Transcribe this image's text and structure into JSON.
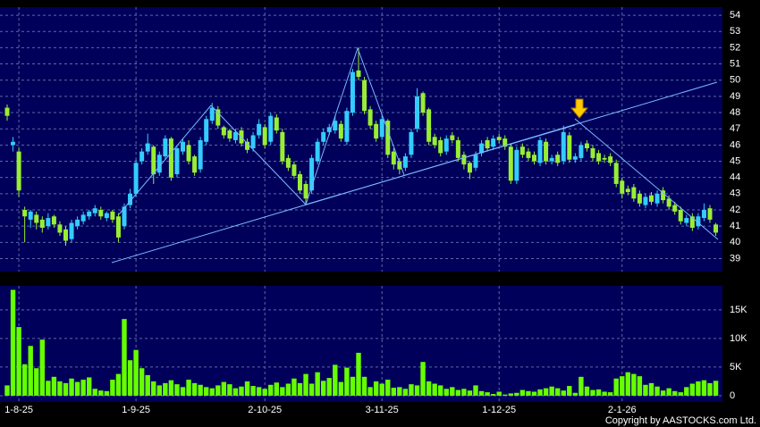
{
  "chart_data": {
    "type": "candlestick",
    "categories": [
      null,
      null,
      "1-8-25",
      null,
      null,
      null,
      null,
      null,
      null,
      null,
      null,
      null,
      null,
      null,
      null,
      null,
      null,
      null,
      null,
      null,
      null,
      null,
      "1-9-25",
      null,
      null,
      null,
      null,
      null,
      null,
      null,
      null,
      null,
      null,
      null,
      null,
      null,
      null,
      null,
      null,
      null,
      null,
      null,
      null,
      null,
      "2-10-25",
      null,
      null,
      null,
      null,
      null,
      null,
      null,
      null,
      null,
      null,
      null,
      null,
      null,
      null,
      null,
      null,
      null,
      null,
      null,
      "3-11-25",
      null,
      null,
      null,
      null,
      null,
      null,
      null,
      null,
      null,
      null,
      null,
      null,
      null,
      null,
      null,
      null,
      null,
      null,
      null,
      "1-12-25",
      null,
      null,
      null,
      null,
      null,
      null,
      null,
      null,
      null,
      null,
      null,
      null,
      null,
      null,
      null,
      null,
      null,
      null,
      null,
      null,
      "2-1-26",
      null,
      null,
      null,
      null,
      null,
      null,
      null,
      null,
      null,
      null,
      null,
      null,
      null,
      null,
      null,
      null
    ],
    "open": [
      48.3,
      46.0,
      45.6,
      42.0,
      41.4,
      41.7,
      41.4,
      41.0,
      41.6,
      41.1,
      40.8,
      40.2,
      41.0,
      41.3,
      41.6,
      41.8,
      42.0,
      41.5,
      41.9,
      41.6,
      41.0,
      42.3,
      43.0,
      45.0,
      45.6,
      45.9,
      44.3,
      45.3,
      46.4,
      44.2,
      45.6,
      46.0,
      45.3,
      44.5,
      46.2,
      47.5,
      48.2,
      47.1,
      46.9,
      46.3,
      46.9,
      46.2,
      45.8,
      46.6,
      47.1,
      46.2,
      47.7,
      46.8,
      45.2,
      44.8,
      44.2,
      43.6,
      43.2,
      45.0,
      46.2,
      46.8,
      46.9,
      47.3,
      46.2,
      48.0,
      50.6,
      50.0,
      48.2,
      47.3,
      46.5,
      47.5,
      45.6,
      45.0,
      44.6,
      45.4,
      47.0,
      49.2,
      48.2,
      46.5,
      46.3,
      45.6,
      46.6,
      46.3,
      45.4,
      44.9,
      44.6,
      45.5,
      46.3,
      45.9,
      46.5,
      46.4,
      45.9,
      43.8,
      45.9,
      45.6,
      45.4,
      44.9,
      46.2,
      45.0,
      45.4,
      45.0,
      46.6,
      45.1,
      45.2,
      46.1,
      45.8,
      45.5,
      45.2,
      45.3,
      44.9,
      43.8,
      43.3,
      43.4,
      43.0,
      42.3,
      42.9,
      42.4,
      43.2,
      42.7,
      42.3,
      42.0,
      41.2,
      41.6,
      41.0,
      41.5,
      42.1,
      41.1
    ],
    "high": [
      48.5,
      46.5,
      45.8,
      42.2,
      42.0,
      41.9,
      41.6,
      41.8,
      41.7,
      41.3,
      41.0,
      41.4,
      41.6,
      41.9,
      42.0,
      42.3,
      42.2,
      41.9,
      42.0,
      41.8,
      42.4,
      43.3,
      45.1,
      45.8,
      46.7,
      46.0,
      45.6,
      46.6,
      46.5,
      46.0,
      46.4,
      46.3,
      45.4,
      46.5,
      47.8,
      48.6,
      48.4,
      47.2,
      47.0,
      47.0,
      47.1,
      46.4,
      46.8,
      47.6,
      47.3,
      48.0,
      47.9,
      47.0,
      45.4,
      45.0,
      44.4,
      43.8,
      45.4,
      46.4,
      47.0,
      47.3,
      47.8,
      47.5,
      48.3,
      50.7,
      52.0,
      50.2,
      48.4,
      47.5,
      47.8,
      47.6,
      45.8,
      45.2,
      45.5,
      47.0,
      49.5,
      49.3,
      48.3,
      46.7,
      46.5,
      46.6,
      46.8,
      46.5,
      45.6,
      45.0,
      45.6,
      46.3,
      46.5,
      46.6,
      46.7,
      46.6,
      46.1,
      45.9,
      46.1,
      45.8,
      45.6,
      46.5,
      46.4,
      45.4,
      45.6,
      47.2,
      46.8,
      45.5,
      46.2,
      46.3,
      46.0,
      45.7,
      45.4,
      45.5,
      45.1,
      44.0,
      43.5,
      43.6,
      43.2,
      43.0,
      43.1,
      43.2,
      43.4,
      42.9,
      42.5,
      42.2,
      41.7,
      41.8,
      41.8,
      42.4,
      42.3,
      41.2
    ],
    "low": [
      47.5,
      45.6,
      42.8,
      40.0,
      40.9,
      40.8,
      40.6,
      40.8,
      40.9,
      40.4,
      39.8,
      40.0,
      40.8,
      41.1,
      41.4,
      41.6,
      41.4,
      41.3,
      41.2,
      40.0,
      40.8,
      42.1,
      42.8,
      44.8,
      45.4,
      43.6,
      44.1,
      45.1,
      43.8,
      44.0,
      45.4,
      44.8,
      44.1,
      44.3,
      46.0,
      47.3,
      47.0,
      46.4,
      46.2,
      46.1,
      45.9,
      45.5,
      45.6,
      46.4,
      45.8,
      46.0,
      46.7,
      44.8,
      44.4,
      43.9,
      43.0,
      42.4,
      43.0,
      44.8,
      46.0,
      46.6,
      46.7,
      46.2,
      46.0,
      47.8,
      50.0,
      47.9,
      47.0,
      46.2,
      46.3,
      45.2,
      44.5,
      44.2,
      44.4,
      45.2,
      46.8,
      47.8,
      46.0,
      45.8,
      45.3,
      45.4,
      46.1,
      45.0,
      44.5,
      43.9,
      44.4,
      45.3,
      45.6,
      45.7,
      46.1,
      45.7,
      43.6,
      43.6,
      45.2,
      45.0,
      44.8,
      44.7,
      44.8,
      44.8,
      44.7,
      44.8,
      44.9,
      44.9,
      45.0,
      45.6,
      45.0,
      44.8,
      44.9,
      44.7,
      43.4,
      42.7,
      42.9,
      42.5,
      42.2,
      42.1,
      42.3,
      42.2,
      42.4,
      42.0,
      41.7,
      41.1,
      41.0,
      40.7,
      40.8,
      41.3,
      41.2,
      40.4
    ],
    "close": [
      47.8,
      46.2,
      43.2,
      41.6,
      41.9,
      41.2,
      40.9,
      41.5,
      41.1,
      40.6,
      40.1,
      41.2,
      41.4,
      41.7,
      41.9,
      42.1,
      41.6,
      41.8,
      41.4,
      40.3,
      42.2,
      43.0,
      44.9,
      45.6,
      46.1,
      44.2,
      45.4,
      46.4,
      44.0,
      45.8,
      46.2,
      45.0,
      44.3,
      46.3,
      47.6,
      48.3,
      47.2,
      46.6,
      46.4,
      46.8,
      46.1,
      45.7,
      46.6,
      47.3,
      46.0,
      47.8,
      46.9,
      45.0,
      44.6,
      44.1,
      43.2,
      42.7,
      45.2,
      46.2,
      46.8,
      47.1,
      47.5,
      46.4,
      48.1,
      50.5,
      50.2,
      48.1,
      47.2,
      46.4,
      47.6,
      45.4,
      44.8,
      44.5,
      45.3,
      46.8,
      49.0,
      48.0,
      46.2,
      46.0,
      45.5,
      46.4,
      46.3,
      45.2,
      44.8,
      44.3,
      45.4,
      46.1,
      45.8,
      46.4,
      46.3,
      45.9,
      43.8,
      45.7,
      45.4,
      45.2,
      45.0,
      46.3,
      45.0,
      45.2,
      44.9,
      46.8,
      45.1,
      45.3,
      46.0,
      45.8,
      45.2,
      45.0,
      45.1,
      44.9,
      43.6,
      43.0,
      43.1,
      42.7,
      42.4,
      42.8,
      42.5,
      43.0,
      42.6,
      42.2,
      41.9,
      41.3,
      41.5,
      40.9,
      41.6,
      42.0,
      41.4,
      40.6
    ],
    "volume": [
      1800,
      18500,
      12000,
      5500,
      8700,
      4800,
      9800,
      2600,
      3300,
      2500,
      2200,
      3000,
      2400,
      2800,
      3200,
      1200,
      900,
      800,
      2800,
      3800,
      13400,
      6200,
      8000,
      4800,
      3600,
      2500,
      1800,
      2200,
      2700,
      2000,
      1500,
      2800,
      2200,
      1900,
      1500,
      1300,
      1800,
      2400,
      2000,
      1300,
      1600,
      2500,
      1700,
      1500,
      1200,
      1900,
      2300,
      1500,
      2100,
      3000,
      2200,
      3800,
      2100,
      4100,
      2600,
      3100,
      5400,
      2400,
      4900,
      3300,
      7500,
      3300,
      1500,
      2500,
      2100,
      2800,
      1400,
      1500,
      1200,
      2000,
      1800,
      5900,
      2500,
      2100,
      1800,
      1200,
      1500,
      1000,
      1200,
      900,
      1800,
      800,
      600,
      300,
      700,
      200,
      400,
      500,
      1000,
      800,
      700,
      1100,
      1300,
      1600,
      1300,
      900,
      1700,
      500,
      3300,
      1600,
      1000,
      1100,
      700,
      600,
      3000,
      3400,
      4100,
      3800,
      3400,
      1900,
      2200,
      1600,
      900,
      1300,
      800,
      600,
      1500,
      2100,
      2500,
      2700,
      2200,
      2600
    ],
    "up_color": "#33ccff",
    "down_color": "#99ee33",
    "volume_color": "#66ff00",
    "ylim": [
      38.2,
      54.5
    ],
    "yticks": [
      39,
      40,
      41,
      42,
      43,
      44,
      45,
      46,
      47,
      48,
      49,
      50,
      51,
      52,
      53,
      54
    ],
    "volume_ylim": [
      -1100,
      19200
    ],
    "volume_yticks": [
      0,
      {
        "value": 5000,
        "label": "5K"
      },
      {
        "value": 10000,
        "label": "10K"
      },
      {
        "value": 15000,
        "label": "15K"
      }
    ],
    "grid": true,
    "copyright": "Copyright by AASTOCKS.com Ltd."
  }
}
